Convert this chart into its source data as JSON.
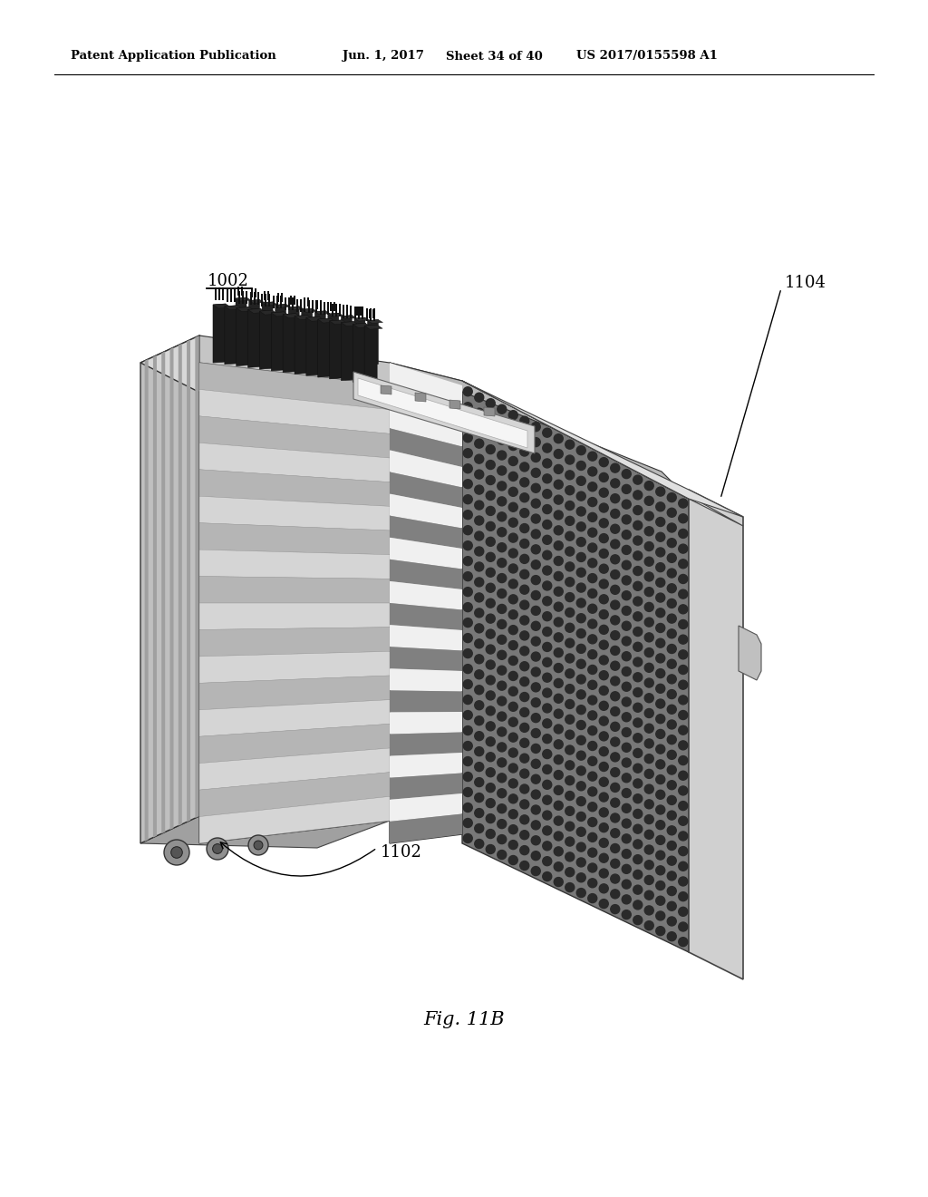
{
  "background_color": "#ffffff",
  "header_text": "Patent Application Publication",
  "header_date": "Jun. 1, 2017",
  "header_sheet": "Sheet 34 of 40",
  "header_patent": "US 2017/0155598 A1",
  "figure_label": "Fig. 11B",
  "label_1002": "1002",
  "label_1104": "1104",
  "label_1102": "1102",
  "colors": {
    "left_panel_face": "#c0c0c0",
    "left_panel_top": "#d8d8d8",
    "left_panel_stripe_dark": "#a0a0a0",
    "left_panel_stripe_light": "#cecece",
    "mid_panel_face": "#b8b8b8",
    "mid_panel_stripe_white": "#f0f0f0",
    "mid_panel_stripe_dark": "#888888",
    "right_panel_face": "#787878",
    "right_panel_dots": "#2a2a2a",
    "frame_right_face": "#c8c8c8",
    "frame_top_face": "#e0e0e0",
    "connector_dark": "#1a1a1a",
    "connector_body": "#282828",
    "pcb_strip": "#d5d5d5",
    "pcb_white": "#f5f5f5",
    "edge_color": "#333333",
    "black": "#000000",
    "wheel_color": "#888888"
  }
}
